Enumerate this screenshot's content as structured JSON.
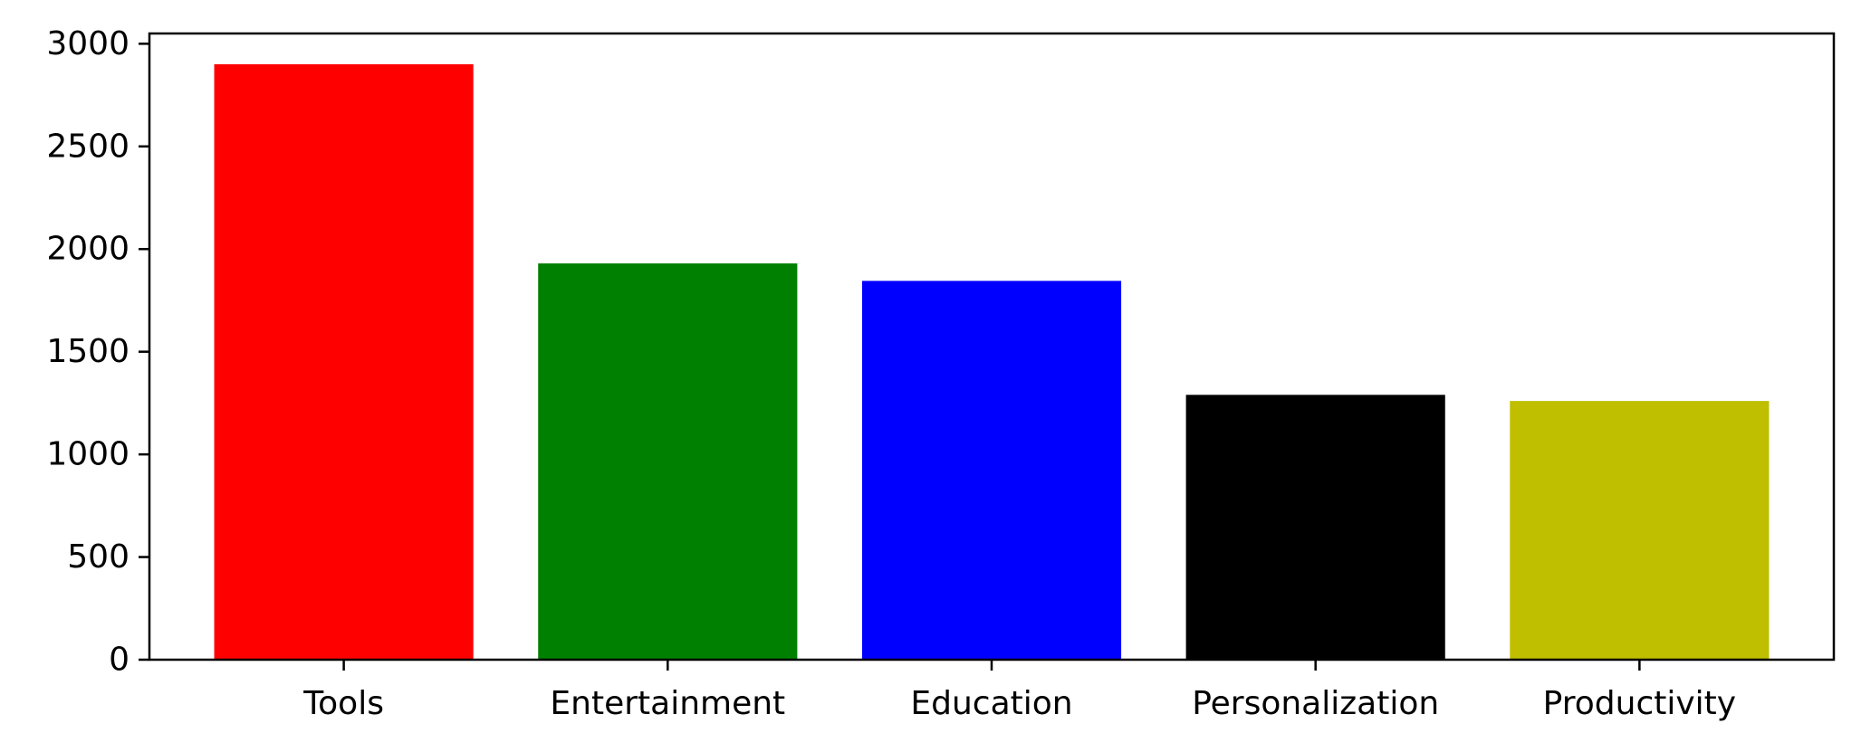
{
  "chart_data": {
    "type": "bar",
    "title": "",
    "xlabel": "",
    "ylabel": "",
    "categories": [
      "Tools",
      "Entertainment",
      "Education",
      "Personalization",
      "Productivity"
    ],
    "values": [
      2900,
      1930,
      1845,
      1290,
      1260
    ],
    "colors": [
      "#ff0000",
      "#008000",
      "#0000ff",
      "#000000",
      "#bfbf00"
    ],
    "ylim": [
      0,
      3050
    ],
    "yticks": [
      0,
      500,
      1000,
      1500,
      2000,
      2500,
      3000
    ],
    "grid": false,
    "legend": "none"
  }
}
